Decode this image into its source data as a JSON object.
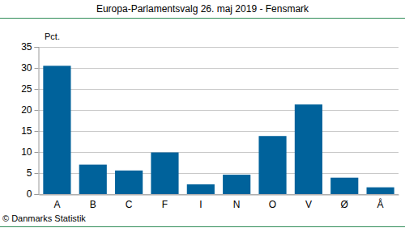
{
  "chart_data": {
    "type": "bar",
    "title": "Europa-Parlamentsvalg 26. maj 2019 - Fensmark",
    "y_label": "Pct.",
    "source": "© Danmarks Statistik",
    "categories": [
      "A",
      "B",
      "C",
      "F",
      "I",
      "N",
      "O",
      "V",
      "Ø",
      "Å"
    ],
    "values": [
      30.5,
      7.0,
      5.6,
      9.9,
      2.3,
      4.6,
      13.8,
      21.3,
      3.9,
      1.6
    ],
    "color": "#00629b",
    "ylim": [
      0,
      35
    ],
    "yticks": [
      0,
      5,
      10,
      15,
      20,
      25,
      30,
      35
    ],
    "grid": true
  }
}
